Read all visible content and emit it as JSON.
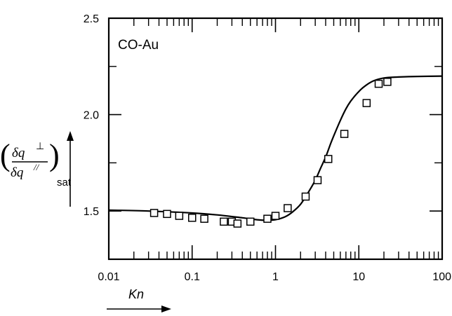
{
  "chart_data": {
    "type": "scatter",
    "title": "",
    "annotation": "CO-Au",
    "xlabel": "Kn",
    "ylabel": {
      "numerator": "δq",
      "numerator_sup": "⊥",
      "denominator": "δq",
      "denominator_sup": "//",
      "subscript": "sat"
    },
    "x_scale": "log",
    "xlim": [
      0.01,
      100
    ],
    "ylim": [
      1.25,
      2.5
    ],
    "x_ticks": [
      {
        "value": 0.01,
        "label": "0.01"
      },
      {
        "value": 0.1,
        "label": "0.1"
      },
      {
        "value": 1,
        "label": "1"
      },
      {
        "value": 10,
        "label": "10"
      },
      {
        "value": 100,
        "label": "100"
      }
    ],
    "y_ticks": [
      {
        "value": 1.5,
        "label": "1.5"
      },
      {
        "value": 2.0,
        "label": "2.0"
      },
      {
        "value": 2.5,
        "label": "2.5"
      }
    ],
    "grid": false,
    "series": [
      {
        "kind": "markers",
        "marker": "open-square",
        "x": [
          0.035,
          0.05,
          0.07,
          0.1,
          0.14,
          0.24,
          0.3,
          0.35,
          0.5,
          0.8,
          1.0,
          1.4,
          2.3,
          3.2,
          4.3,
          6.7,
          12.4,
          17.3,
          22
        ],
        "y": [
          1.49,
          1.485,
          1.475,
          1.465,
          1.46,
          1.445,
          1.445,
          1.435,
          1.445,
          1.46,
          1.475,
          1.515,
          1.575,
          1.66,
          1.77,
          1.9,
          2.06,
          2.16,
          2.17
        ]
      },
      {
        "kind": "line",
        "x": [
          0.01,
          0.03,
          0.1,
          0.2,
          0.4,
          0.6,
          0.8,
          1.0,
          1.3,
          1.6,
          2.0,
          2.5,
          3.0,
          3.5,
          4.0,
          4.5,
          5.0,
          6.0,
          7.0,
          8.0,
          10,
          12,
          15,
          20,
          30,
          50,
          100
        ],
        "y": [
          1.505,
          1.5,
          1.49,
          1.48,
          1.465,
          1.455,
          1.452,
          1.455,
          1.47,
          1.495,
          1.535,
          1.6,
          1.66,
          1.725,
          1.78,
          1.84,
          1.89,
          1.97,
          2.03,
          2.07,
          2.12,
          2.15,
          2.175,
          2.19,
          2.195,
          2.198,
          2.2
        ]
      }
    ]
  }
}
